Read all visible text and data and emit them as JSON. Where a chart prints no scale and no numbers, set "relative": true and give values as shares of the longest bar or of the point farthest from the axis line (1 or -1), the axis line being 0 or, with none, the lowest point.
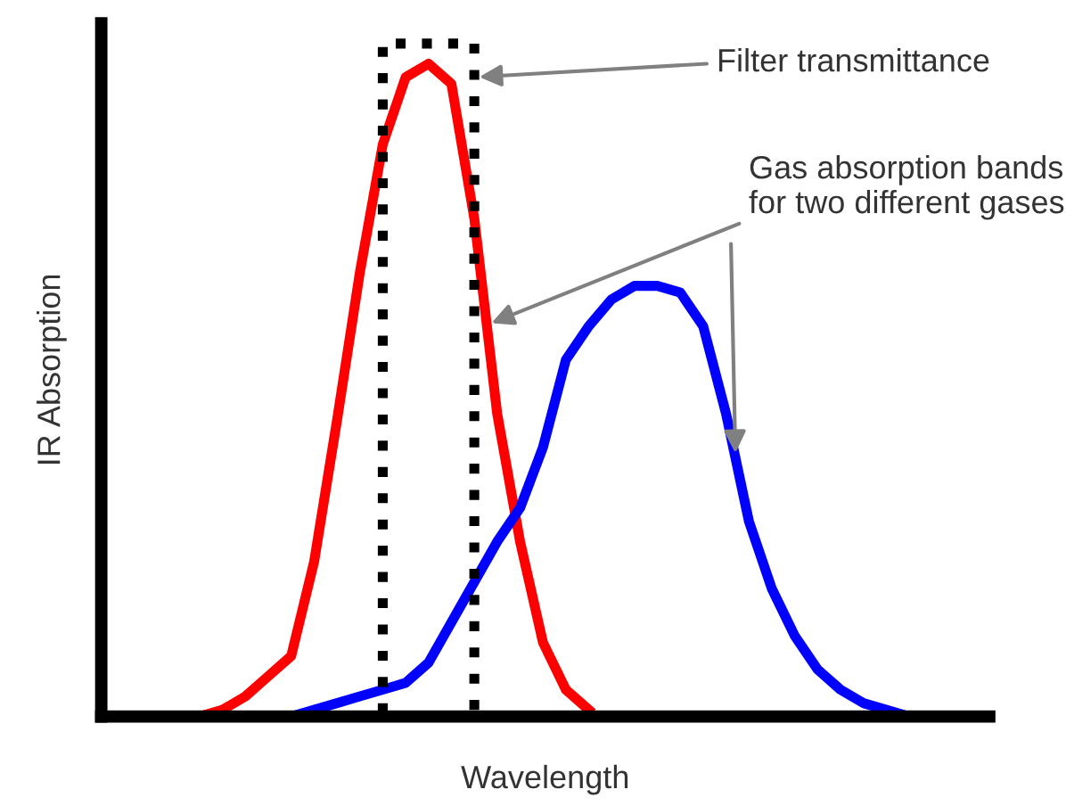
{
  "chart_data": {
    "type": "line",
    "relative": true,
    "xlabel": "Wavelength",
    "ylabel": "IR Absorption",
    "categories": [
      null,
      null,
      null,
      null,
      null,
      null,
      null,
      null,
      null,
      null,
      null,
      null,
      null,
      null,
      null,
      null,
      null,
      null,
      null,
      null,
      null,
      null,
      null,
      null,
      null,
      null,
      null,
      null,
      null,
      null,
      null,
      null,
      null,
      null,
      null,
      null,
      null,
      null,
      null
    ],
    "series": [
      {
        "color": "#ff0000",
        "values": [
          null,
          null,
          null,
          null,
          0,
          0.01,
          0.03,
          0.06,
          0.09,
          0.23,
          0.44,
          0.66,
          0.85,
          0.95,
          0.97,
          0.94,
          0.74,
          0.45,
          0.26,
          0.11,
          0.04,
          0.01,
          null,
          null,
          null,
          null,
          null,
          null,
          null,
          null,
          null,
          null,
          null,
          null,
          null,
          null,
          null,
          null,
          null
        ]
      },
      {
        "color": "#0000ff",
        "values": [
          null,
          null,
          null,
          null,
          null,
          null,
          null,
          null,
          0,
          0.01,
          0.02,
          0.03,
          0.04,
          0.05,
          0.08,
          0.14,
          0.2,
          0.26,
          0.31,
          0.4,
          0.53,
          0.58,
          0.62,
          0.64,
          0.64,
          0.63,
          0.58,
          0.45,
          0.29,
          0.19,
          0.12,
          0.07,
          0.04,
          0.02,
          0.01,
          0,
          null,
          null,
          null
        ]
      },
      {
        "type": "step",
        "color": "#000000",
        "line_style": "dotted",
        "values": [
          null,
          null,
          null,
          null,
          null,
          null,
          null,
          null,
          null,
          null,
          null,
          0,
          1,
          1,
          1,
          1,
          0,
          null,
          null,
          null,
          null,
          null,
          null,
          null,
          null,
          null,
          null,
          null,
          null,
          null,
          null,
          null,
          null,
          null,
          null,
          null,
          null,
          null,
          null
        ]
      }
    ],
    "annotations": [
      "Filter transmittance",
      "Gas absorption bands for two different gases"
    ],
    "grid": false,
    "legend": false
  }
}
